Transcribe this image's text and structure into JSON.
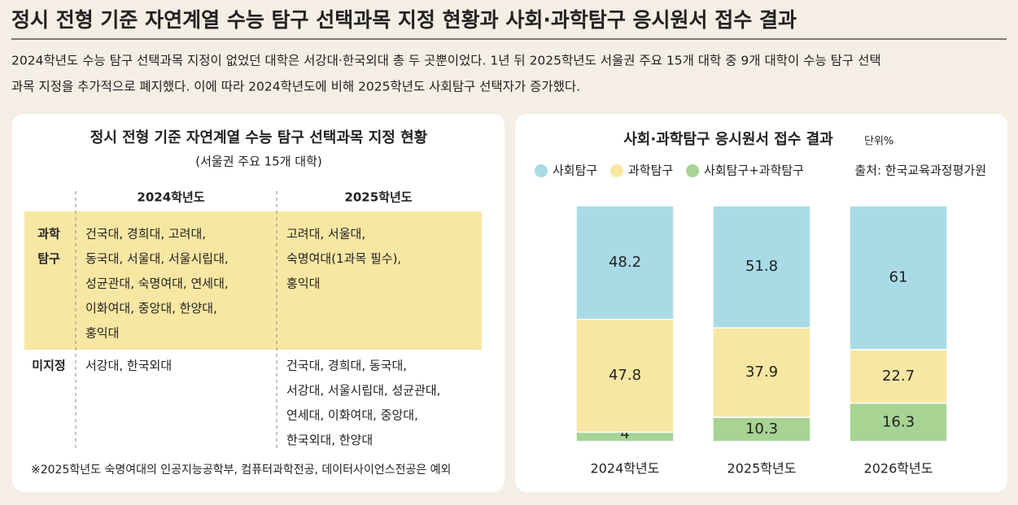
{
  "header": {
    "title": "정시 전형 기준 자연계열 수능 탐구 선택과목 지정 현황과 사회·과학탐구 응시원서 접수 결과",
    "description": [
      "2024학년도 수능 탐구 선택과목 지정이 없었던 대학은 서강대·한국외대 총 두 곳뿐이었다. 1년 뒤 2025학년도 서울권 주요 15개 대학 중 9개 대학이 수능 탐구 선택",
      "과목 지정을 추가적으로 폐지했다. 이에 따라 2024학년도에 비해 2025학년도 사회탐구 선택자가 증가했다."
    ]
  },
  "table": {
    "title": "정시 전형 기준 자연계열 수능 탐구 선택과목 지정 현황",
    "subtitle": "(서울권 주요 15개 대학)",
    "columns": [
      "2024학년도",
      "2025학년도"
    ],
    "rows": [
      {
        "label": [
          "과학",
          "탐구"
        ],
        "cells": [
          [
            "건국대, 경희대, 고려대,",
            "동국대, 서울대, 서울시립대,",
            "성균관대, 숙명여대, 연세대,",
            "이화여대, 중앙대, 한양대,",
            "홍익대"
          ],
          [
            "고려대, 서울대,",
            "숙명여대(1과목 필수),",
            "홍익대"
          ]
        ]
      },
      {
        "label": [
          "미지정"
        ],
        "cells": [
          [
            "서강대, 한국외대"
          ],
          [
            "건국대, 경희대, 동국대,",
            "서강대, 서울시립대, 성균관대,",
            "연세대, 이화여대, 중앙대,",
            "한국외대, 한양대"
          ]
        ]
      }
    ],
    "footnote": "※2025학년도 숙명여대의 인공지능공학부, 컴퓨터과학전공, 데이터사이언스전공은 예외"
  },
  "chart_data": {
    "type": "stacked-bar",
    "title": "사회·과학탐구 응시원서 접수 결과",
    "unit": "단위%",
    "source": "출처: 한국교육과정평가원",
    "categories": [
      "2024학년도",
      "2025학년도",
      "2026학년도"
    ],
    "series": [
      {
        "name": "사회탐구",
        "color": "#a9dbe7",
        "values": [
          48.2,
          51.8,
          61
        ]
      },
      {
        "name": "과학탐구",
        "color": "#f8e7a3",
        "values": [
          47.8,
          37.9,
          22.7
        ]
      },
      {
        "name": "사회탐구+과학탐구",
        "color": "#a7d393",
        "values": [
          4,
          10.3,
          16.3
        ]
      }
    ],
    "ylim": [
      0,
      100
    ]
  }
}
